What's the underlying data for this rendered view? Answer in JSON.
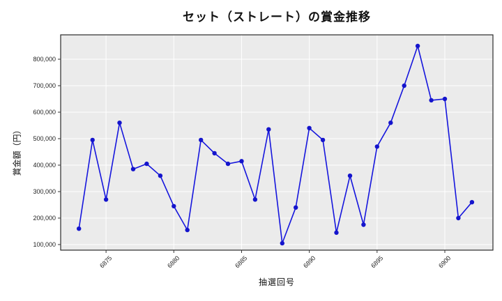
{
  "title": "セット（ストレート）の賞金推移",
  "chart_data": {
    "type": "line",
    "title": "セット（ストレート）の賞金推移",
    "xlabel": "抽選回号",
    "ylabel": "賞金額（円）",
    "x": [
      6873,
      6874,
      6875,
      6876,
      6877,
      6878,
      6879,
      6880,
      6881,
      6882,
      6883,
      6884,
      6885,
      6886,
      6887,
      6888,
      6889,
      6890,
      6891,
      6892,
      6893,
      6894,
      6895,
      6896,
      6897,
      6898,
      6899,
      6900,
      6901,
      6902
    ],
    "values": [
      160000,
      495000,
      270000,
      560000,
      385000,
      405000,
      360000,
      245000,
      155000,
      495000,
      445000,
      405000,
      415000,
      270000,
      535000,
      105000,
      240000,
      540000,
      495000,
      145000,
      360000,
      175000,
      470000,
      560000,
      700000,
      850000,
      645000,
      650000,
      200000,
      260000
    ],
    "x_ticks": [
      6875,
      6880,
      6885,
      6890,
      6895,
      6900
    ],
    "x_tick_labels": [
      "6875",
      "6880",
      "6885",
      "6890",
      "6895",
      "6900"
    ],
    "y_ticks": [
      100000,
      200000,
      300000,
      400000,
      500000,
      600000,
      700000,
      800000
    ],
    "y_tick_labels": [
      "100,000",
      "200,000",
      "300,000",
      "400,000",
      "500,000",
      "600,000",
      "700,000",
      "800,000"
    ],
    "xlim": [
      6871.65,
      6903.55
    ],
    "ylim": [
      78900,
      892100
    ],
    "grid": true,
    "legend": "none",
    "colors": {
      "line": "#1515dd",
      "marker": "#1414cc",
      "plot_background": "#ebebeb",
      "grid": "#ffffff",
      "frame": "#2a2a2a",
      "tick": "#333333",
      "text": "#1f1f1f"
    }
  }
}
